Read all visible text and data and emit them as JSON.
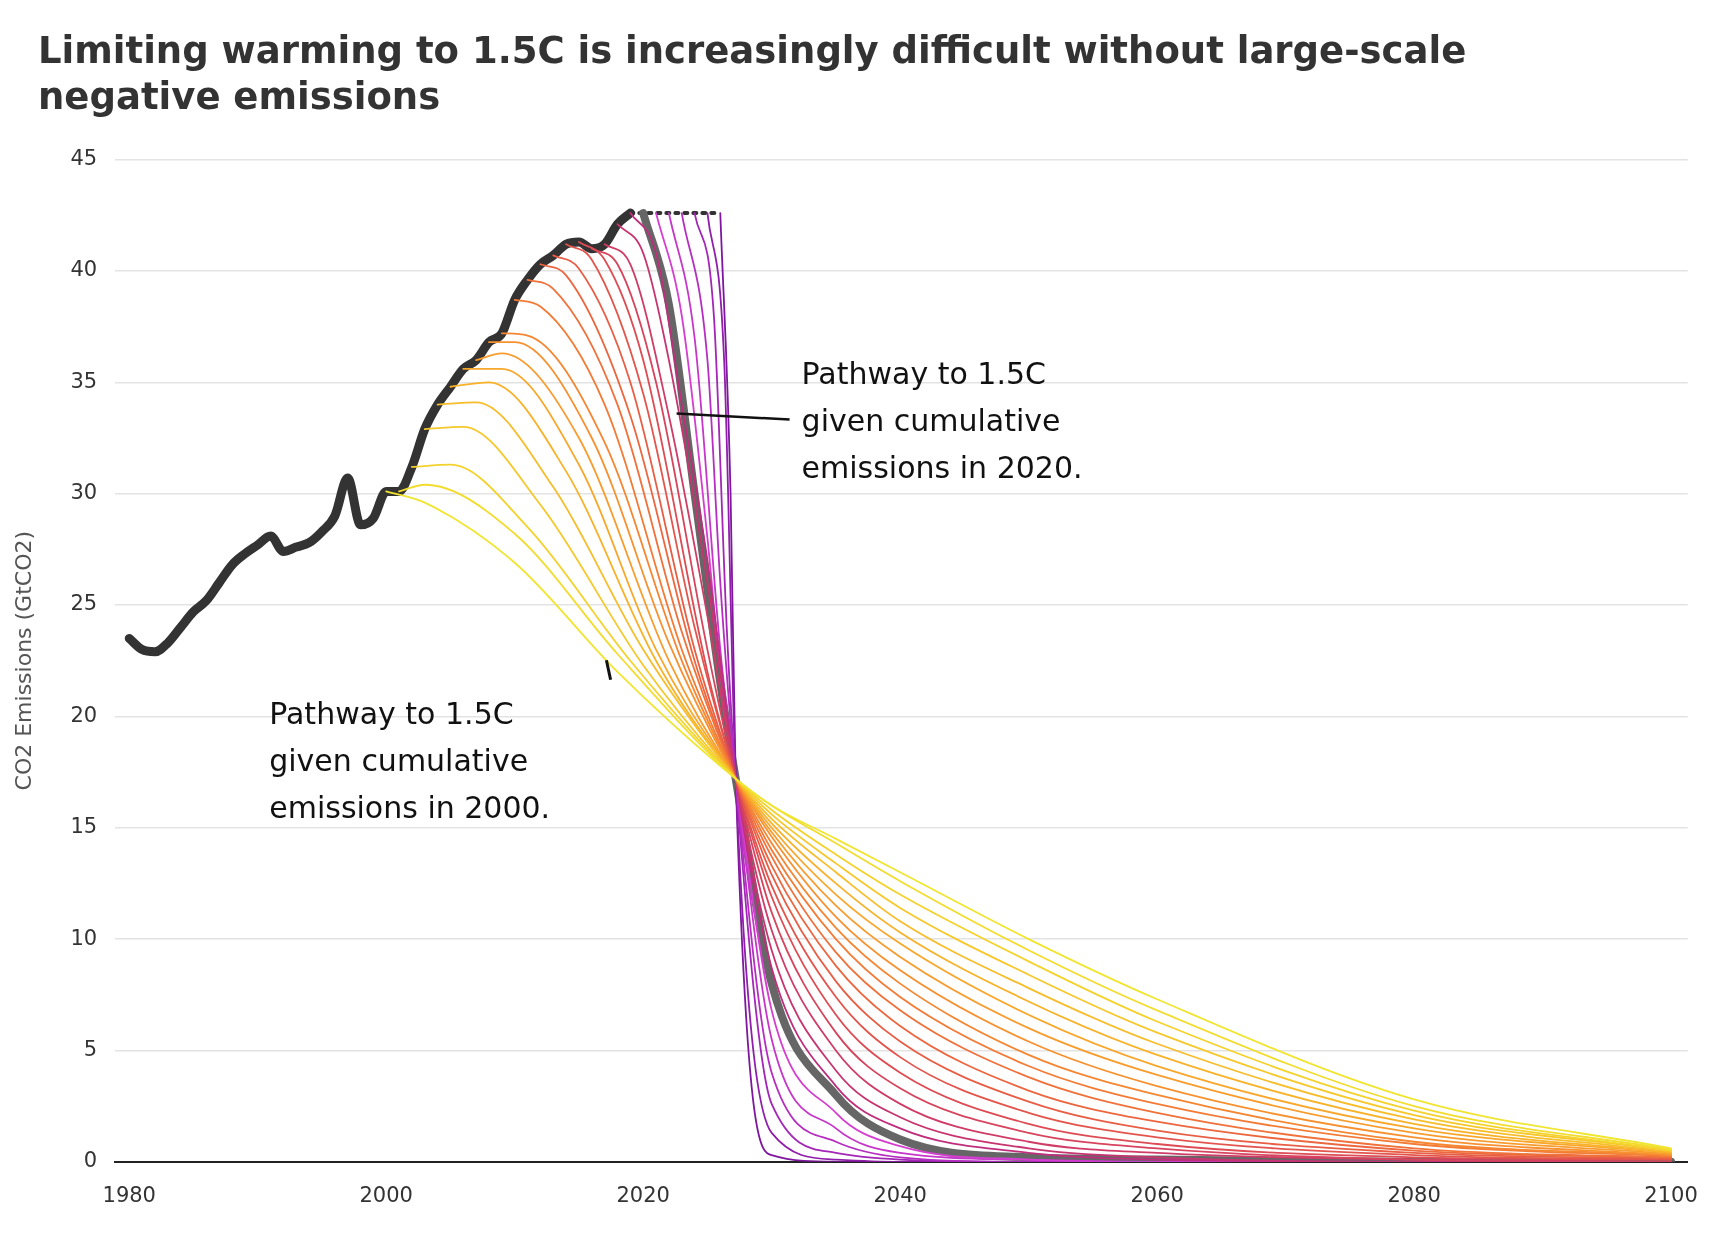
{
  "chart_data": {
    "type": "line",
    "title": "Limiting warming to 1.5C is increasingly difficult without large-scale negative emissions",
    "ylabel": "CO2 Emissions (GtCO2)",
    "xlim": [
      1978.9,
      2101.3
    ],
    "xticks": [
      1980,
      2000,
      2020,
      2040,
      2060,
      2080,
      2100
    ],
    "ylim": [
      0,
      45
    ],
    "yticks": [
      0,
      5,
      10,
      15,
      20,
      25,
      30,
      35,
      40,
      45
    ],
    "grid": "y",
    "legend": false,
    "marker": "none",
    "line_style": "solid",
    "annotations": [
      {
        "text": "Pathway to 1.5C given cumulative emissions in 2020.",
        "x": 2022.6,
        "y": 33.6
      },
      "Pathway to 1.5C given cumulative emissions in 2000."
    ],
    "series": [
      {
        "color": "#f0e530",
        "x": [
          2000,
          2003,
          2010,
          2018,
          2027.2,
          2030,
          2035,
          2040,
          2050,
          2060,
          2080,
          2100
        ],
        "values": [
          30.1,
          29.6,
          26.9,
          22,
          17.2,
          16,
          14.5,
          13,
          10,
          7.3,
          2.8,
          0.6
        ]
      },
      {
        "color": "#f2dc2e",
        "x": [
          2001,
          2003,
          2010,
          2018,
          2027.2,
          2030,
          2035,
          2040,
          2050,
          2060,
          2080,
          2100
        ],
        "values": [
          30.1,
          30.4,
          28.2,
          22.8,
          17.2,
          16,
          14.3,
          12.6,
          9.5,
          6.8,
          2.5,
          0.55
        ]
      },
      {
        "color": "#f4d22c",
        "x": [
          2002,
          2005,
          2011,
          2019,
          2027.2,
          2030,
          2035,
          2040,
          2050,
          2060,
          2080,
          2100
        ],
        "values": [
          31.2,
          31.3,
          28.5,
          22.5,
          17.2,
          15.8,
          13.8,
          12,
          9,
          6.3,
          2.3,
          0.5
        ]
      },
      {
        "color": "#f6c82b",
        "x": [
          2003,
          2006,
          2012,
          2020,
          2027.2,
          2030,
          2035,
          2040,
          2050,
          2060,
          2080,
          2100
        ],
        "values": [
          32.9,
          33,
          29.5,
          22.3,
          17.2,
          15.6,
          13.4,
          11.4,
          8.4,
          5.8,
          2.1,
          0.5
        ]
      },
      {
        "color": "#f7bd2a",
        "x": [
          2004,
          2007,
          2013,
          2020,
          2027.2,
          2030,
          2035,
          2040,
          2050,
          2060,
          2080,
          2100
        ],
        "values": [
          34,
          34.1,
          30.3,
          23,
          17.2,
          15.4,
          13,
          10.8,
          7.8,
          5.3,
          1.9,
          0.45
        ]
      },
      {
        "color": "#f8b22a",
        "x": [
          2005,
          2008,
          2014,
          2021,
          2027.2,
          2030,
          2035,
          2040,
          2050,
          2060,
          2080,
          2100
        ],
        "values": [
          34.8,
          35,
          31,
          22.5,
          17.2,
          15.2,
          12.5,
          10.3,
          7.2,
          4.8,
          1.7,
          0.4
        ]
      },
      {
        "color": "#f8a72b",
        "x": [
          2006,
          2009,
          2015,
          2021,
          2027.2,
          2030,
          2035,
          2040,
          2050,
          2060,
          2080,
          2100
        ],
        "values": [
          35.6,
          35.6,
          31.3,
          23,
          17.2,
          15,
          12,
          9.8,
          6.6,
          4.3,
          1.5,
          0.4
        ]
      },
      {
        "color": "#f89c2d",
        "x": [
          2007,
          2009,
          2015,
          2022,
          2027.2,
          2030,
          2035,
          2040,
          2050,
          2060,
          2080,
          2100
        ],
        "values": [
          36,
          36.3,
          32.5,
          22.5,
          17.2,
          14.8,
          11.5,
          9.2,
          6,
          3.9,
          1.3,
          0.35
        ]
      },
      {
        "color": "#f7912f",
        "x": [
          2008,
          2010,
          2016,
          2022,
          2027.2,
          2030,
          2035,
          2040,
          2050,
          2060,
          2080,
          2100
        ],
        "values": [
          36.8,
          36.8,
          32.5,
          23.3,
          17.2,
          14.6,
          11,
          8.6,
          5.4,
          3.4,
          1.1,
          0.3
        ]
      },
      {
        "color": "#f58632",
        "x": [
          2009,
          2011,
          2017,
          2023,
          2027.2,
          2030,
          2035,
          2040,
          2050,
          2060,
          2080,
          2100
        ],
        "values": [
          37.2,
          37.1,
          32.3,
          22.5,
          17.2,
          14.3,
          10.5,
          8,
          4.8,
          3,
          0.9,
          0.3
        ]
      },
      {
        "color": "#f37b36",
        "x": [
          2010,
          2012,
          2017,
          2023,
          2027.2,
          2030,
          2035,
          2040,
          2050,
          2060,
          2080,
          2100
        ],
        "values": [
          38.7,
          38.4,
          34,
          23,
          17.2,
          14,
          10,
          7.4,
          4.3,
          2.6,
          0.8,
          0.25
        ]
      },
      {
        "color": "#f0713a",
        "x": [
          2011,
          2013,
          2018,
          2023,
          2027.2,
          2030,
          2035,
          2040,
          2050,
          2060,
          2080,
          2100
        ],
        "values": [
          39.6,
          39.2,
          34,
          23.8,
          17.2,
          13.7,
          9.4,
          6.8,
          3.8,
          2.2,
          0.6,
          0.2
        ]
      },
      {
        "color": "#ec673f",
        "x": [
          2012,
          2014,
          2019,
          2024,
          2027.2,
          2030,
          2035,
          2040,
          2050,
          2060,
          2080,
          2100
        ],
        "values": [
          40.3,
          39.8,
          33.5,
          22.5,
          17.2,
          13.3,
          8.8,
          6.1,
          3.2,
          1.8,
          0.5,
          0.2
        ]
      },
      {
        "color": "#e85e45",
        "x": [
          2013,
          2015,
          2019,
          2024,
          2027.2,
          2030,
          2035,
          2040,
          2050,
          2060,
          2080,
          2100
        ],
        "values": [
          40.7,
          40.1,
          35,
          23,
          17.2,
          12.9,
          8.1,
          5.4,
          2.7,
          1.4,
          0.4,
          0.15
        ]
      },
      {
        "color": "#e3554c",
        "x": [
          2014,
          2016,
          2020,
          2024,
          2027.2,
          2030,
          2035,
          2040,
          2050,
          2060,
          2080,
          2100
        ],
        "values": [
          41.2,
          40.5,
          34.5,
          24,
          17.2,
          12.4,
          7.4,
          4.7,
          2.2,
          1.1,
          0.3,
          0.1
        ]
      },
      {
        "color": "#dd4c54",
        "x": [
          2015,
          2017,
          2020,
          2025,
          2027.2,
          2030,
          2035,
          2040,
          2050,
          2060,
          2080,
          2100
        ],
        "values": [
          41.3,
          40.5,
          36,
          22,
          17.2,
          11.9,
          6.6,
          4,
          1.7,
          0.8,
          0.2,
          0.1
        ]
      },
      {
        "color": "#d6445d",
        "x": [
          2016,
          2018,
          2021,
          2025,
          2027.2,
          2030,
          2035,
          2040,
          2050,
          2060,
          2080,
          2100
        ],
        "values": [
          41,
          40.3,
          35,
          23,
          17.2,
          11.2,
          5.8,
          3.3,
          1.3,
          0.6,
          0.1,
          0
        ]
      },
      {
        "color": "#cf3c67",
        "x": [
          2017,
          2019,
          2022,
          2025,
          2027.2,
          2030,
          2035,
          2040,
          2050,
          2060,
          2080,
          2100
        ],
        "values": [
          41.2,
          40.3,
          33.5,
          24.5,
          17.2,
          10.4,
          5,
          2.6,
          0.9,
          0.4,
          0.1,
          0
        ]
      },
      {
        "color": "#c73571",
        "x": [
          2018,
          2020,
          2022,
          2025,
          2027.2,
          2030,
          2035,
          2040,
          2050,
          2060,
          2080,
          2100
        ],
        "values": [
          42.1,
          40.8,
          36,
          26,
          17.2,
          9.5,
          4.1,
          2,
          0.6,
          0.2,
          0,
          0
        ]
      },
      {
        "color": "#be2e7c",
        "x": [
          2019,
          2021,
          2023,
          2025,
          2027.2,
          2030,
          2035,
          2040,
          2050,
          2060,
          2080,
          2100
        ],
        "values": [
          42.6,
          40.8,
          34,
          27,
          17.2,
          8.7,
          3.4,
          1.5,
          0.4,
          0.1,
          0,
          0
        ]
      },
      {
        "color": "#d53fd0",
        "x": [
          2021,
          2023,
          2025,
          2026,
          2027.2,
          2030,
          2035,
          2040,
          2050,
          2060,
          2080,
          2100
        ],
        "values": [
          42.6,
          38,
          28,
          22,
          17.2,
          6.8,
          2.2,
          0.7,
          0.1,
          0,
          0,
          0
        ]
      },
      {
        "color": "#c636c8",
        "x": [
          2022,
          2024,
          2026,
          2027.2,
          2030,
          2035,
          2040,
          2050,
          2060,
          2080,
          2100
        ],
        "values": [
          42.6,
          37,
          23,
          17.2,
          5.5,
          1.5,
          0.4,
          0.1,
          0,
          0,
          0
        ]
      },
      {
        "color": "#b52ec0",
        "x": [
          2023,
          2025,
          2026,
          2027.2,
          2030,
          2035,
          2040,
          2050,
          2060,
          2080,
          2100
        ],
        "values": [
          42.6,
          36,
          26,
          17.2,
          4,
          0.9,
          0.2,
          0,
          0,
          0,
          0
        ]
      },
      {
        "color": "#a326b6",
        "x": [
          2024,
          2025.5,
          2026.5,
          2027.2,
          2030,
          2035,
          2040,
          2050,
          2060,
          2080,
          2100
        ],
        "values": [
          42.6,
          38,
          24,
          17.2,
          2.6,
          0.4,
          0.1,
          0,
          0,
          0,
          0
        ]
      },
      {
        "color": "#911eaa",
        "x": [
          2025,
          2026.3,
          2027.2,
          2030,
          2035,
          2040,
          2050,
          2060,
          2080,
          2100
        ],
        "values": [
          42.6,
          36,
          17.2,
          1.3,
          0.1,
          0,
          0,
          0,
          0,
          0
        ]
      },
      {
        "color": "#7f179e",
        "x": [
          2026,
          2026.8,
          2027.2,
          2030,
          2035,
          2040,
          2050,
          2060,
          2080,
          2100
        ],
        "values": [
          42.6,
          30,
          17.2,
          0.3,
          0,
          0,
          0,
          0,
          0,
          0
        ]
      },
      {
        "color": "#666666",
        "x": [
          2020,
          2022,
          2024,
          2026,
          2027.2,
          2030,
          2035,
          2040,
          2050,
          2060,
          2080,
          2100
        ],
        "values": [
          42.6,
          38.5,
          30,
          21.5,
          17.2,
          8,
          3,
          1,
          0.2,
          0.1,
          0,
          0
        ]
      },
      {
        "color": "#333333",
        "line_style": "dotted",
        "x": [
          2019,
          2026
        ],
        "values": [
          42.6,
          42.6
        ]
      },
      {
        "color": "#333333",
        "x": [
          1980,
          1981,
          1982,
          1983,
          1984,
          1985,
          1986,
          1987,
          1988,
          1989,
          1990,
          1991,
          1992,
          1993,
          1994,
          1995,
          1996,
          1997,
          1998,
          1999,
          2000,
          2001,
          2002,
          2003,
          2004,
          2005,
          2006,
          2007,
          2008,
          2009,
          2010,
          2011,
          2012,
          2013,
          2014,
          2015,
          2016,
          2017,
          2018,
          2019
        ],
        "values": [
          23.5,
          23.0,
          22.9,
          23.3,
          24.0,
          24.7,
          25.2,
          26.0,
          26.8,
          27.3,
          27.7,
          28.1,
          27.4,
          27.6,
          27.8,
          28.3,
          29.0,
          30.7,
          28.6,
          28.9,
          30.1,
          30.1,
          31.2,
          32.9,
          34.0,
          34.8,
          35.6,
          36.0,
          36.8,
          37.2,
          38.7,
          39.6,
          40.3,
          40.7,
          41.2,
          41.3,
          41.0,
          41.2,
          42.1,
          42.6
        ]
      }
    ]
  }
}
